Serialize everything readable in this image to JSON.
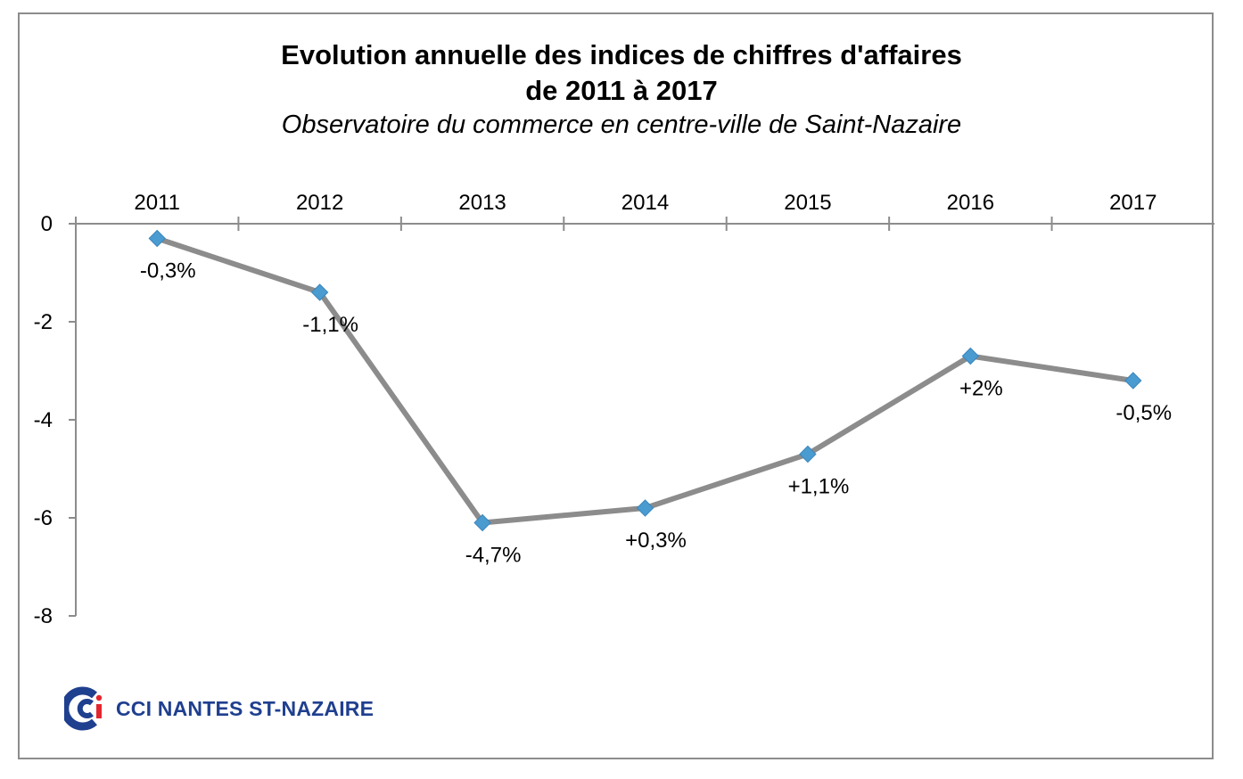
{
  "chart_data": {
    "type": "line",
    "title": "Evolution annuelle des indices de chiffres d'affaires",
    "title_line2": "de 2011 à 2017",
    "subtitle": "Observatoire du commerce en centre-ville de Saint-Nazaire",
    "categories": [
      "2011",
      "2012",
      "2013",
      "2014",
      "2015",
      "2016",
      "2017"
    ],
    "series": [
      {
        "values": [
          -0.3,
          -1.4,
          -6.1,
          -5.8,
          -4.7,
          -2.7,
          -3.2
        ],
        "labels": [
          "-0,3%",
          "-1,1%",
          "-4,7%",
          "+0,3%",
          "+1,1%",
          "+2%",
          "-0,5%"
        ],
        "line_color": "#8c8c8c",
        "marker_color": "#4a9bd0",
        "marker": "diamond"
      }
    ],
    "ylim": [
      -8,
      0
    ],
    "yticks": [
      "0",
      "-2",
      "-4",
      "-6",
      "-8"
    ],
    "ytick_values": [
      0,
      -2,
      -4,
      -6,
      -8
    ],
    "x_axis_position": "top",
    "grid": false,
    "legend": "none"
  },
  "logo": {
    "text": "CCI NANTES ST-NAZAIRE",
    "mark_color": "#1f3f8f",
    "accent_color": "#e3262e"
  }
}
